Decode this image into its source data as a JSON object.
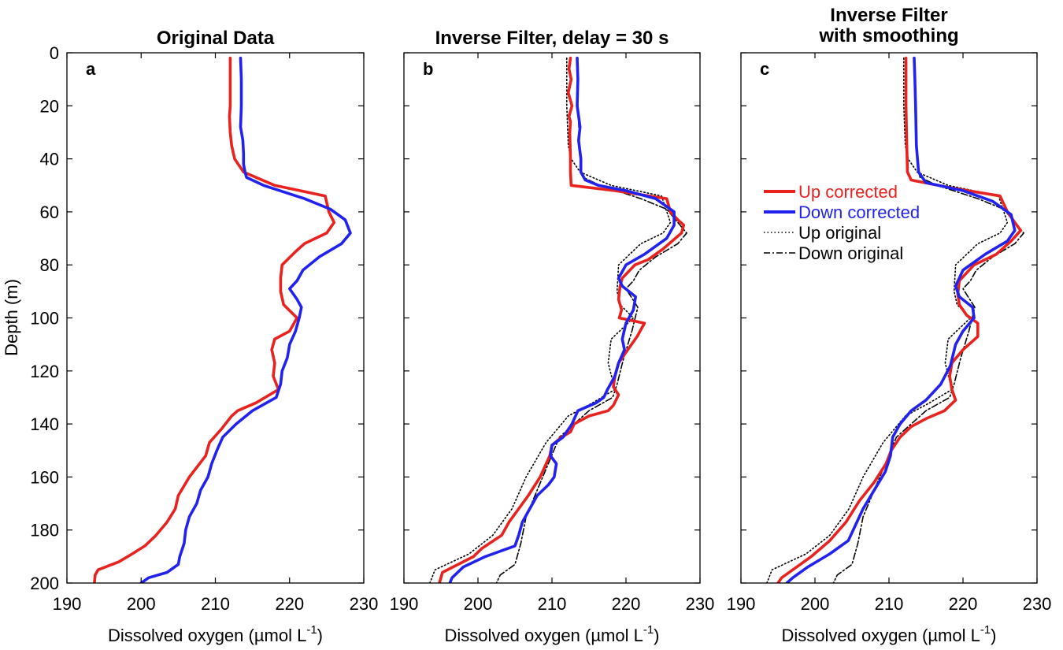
{
  "ylabel": "Depth (m)",
  "xlabel_base": "Dissolved oxygen (µmol L",
  "xlabel_sup": "-1",
  "xlabel_end": ")",
  "legend": {
    "up_corrected": "Up corrected",
    "down_corrected": "Down corrected",
    "up_original": "Up original",
    "down_original": "Down original"
  },
  "colors": {
    "red": "#e8231f",
    "blue": "#2222ee",
    "black": "#000000"
  },
  "chart_data": [
    {
      "type": "line",
      "panel_letter": "a",
      "title_lines": [
        "Original Data"
      ],
      "xlabel": "Dissolved oxygen (µmol L-1)",
      "ylabel": "Depth (m)",
      "xlim": [
        190,
        230
      ],
      "ylim": [
        200,
        0
      ],
      "xticks": [
        190,
        200,
        210,
        220,
        230
      ],
      "yticks": [
        0,
        20,
        40,
        60,
        80,
        100,
        120,
        140,
        160,
        180,
        200
      ],
      "yticks_shown": true,
      "legend": false,
      "series": [
        {
          "key": "up",
          "style": "red-solid",
          "x": [
            212.0,
            212.0,
            212.0,
            211.9,
            212.0,
            212.2,
            212.6,
            213.8,
            218.0,
            224.8,
            225.3,
            226.0,
            225.0,
            222.0,
            220.8,
            219.0,
            218.8,
            218.8,
            219.2,
            221.0,
            220.0,
            218.0,
            217.6,
            218.0,
            217.8,
            218.5,
            215.5,
            213.0,
            212.2,
            210.8,
            209.2,
            208.7,
            206.5,
            205.0,
            204.6,
            203.5,
            202.0,
            200.5,
            198.8,
            197.0,
            194.2,
            193.8,
            193.7
          ],
          "y": [
            2,
            10,
            20,
            24,
            30,
            35,
            40,
            45,
            50,
            54,
            60,
            64,
            68,
            72,
            75,
            80,
            85,
            90,
            95,
            100,
            105,
            108,
            112,
            117,
            122,
            127,
            132,
            135,
            137,
            142,
            147,
            152,
            160,
            167,
            172,
            177,
            182,
            186,
            189,
            192,
            195,
            197,
            200
          ]
        },
        {
          "key": "down",
          "style": "blue-solid",
          "x": [
            213.4,
            213.5,
            213.5,
            213.4,
            213.7,
            213.8,
            213.8,
            214.0,
            214.2,
            216.5,
            222.0,
            225.5,
            227.5,
            228.2,
            227.0,
            224.0,
            221.8,
            221.0,
            220.0,
            221.0,
            221.6,
            221.3,
            220.8,
            220.0,
            219.7,
            219.0,
            218.8,
            218.2,
            215.0,
            212.8,
            211.0,
            210.2,
            209.5,
            209.0,
            208.0,
            207.5,
            206.5,
            206.0,
            205.8,
            205.2,
            205.0,
            203.5,
            201.0,
            200.0
          ],
          "y": [
            2,
            10,
            20,
            28,
            33,
            38,
            42,
            45,
            47,
            50,
            55,
            59,
            63,
            68,
            72,
            77,
            82,
            86,
            89,
            93,
            96,
            100,
            105,
            110,
            115,
            120,
            125,
            130,
            135,
            140,
            145,
            150,
            155,
            160,
            165,
            170,
            175,
            180,
            185,
            190,
            193,
            196,
            198,
            200
          ]
        }
      ]
    },
    {
      "type": "line",
      "panel_letter": "b",
      "title_lines": [
        "Inverse Filter, delay = 30 s"
      ],
      "xlabel": "Dissolved oxygen (µmol L-1)",
      "xlim": [
        190,
        230
      ],
      "ylim": [
        200,
        0
      ],
      "xticks": [
        190,
        200,
        210,
        220,
        230
      ],
      "yticks": [
        0,
        20,
        40,
        60,
        80,
        100,
        120,
        140,
        160,
        180,
        200
      ],
      "yticks_shown": false,
      "legend": false,
      "series": [
        {
          "key": "up_original",
          "style": "black-dotted",
          "x": [
            212.0,
            212.0,
            212.0,
            212.2,
            212.6,
            213.8,
            218.0,
            224.8,
            226.0,
            225.0,
            222.0,
            219.0,
            218.8,
            219.2,
            221.0,
            218.0,
            217.6,
            218.5,
            215.5,
            212.2,
            209.2,
            206.5,
            204.6,
            202.0,
            198.8,
            194.2,
            193.5
          ],
          "y": [
            2,
            10,
            20,
            35,
            40,
            45,
            50,
            54,
            64,
            68,
            72,
            80,
            90,
            95,
            100,
            108,
            117,
            127,
            132,
            137,
            147,
            160,
            172,
            182,
            189,
            195,
            200
          ]
        },
        {
          "key": "down_original",
          "style": "black-dashdot",
          "x": [
            213.4,
            213.5,
            213.5,
            213.8,
            214.0,
            214.2,
            216.5,
            222.0,
            225.5,
            228.2,
            227.0,
            224.0,
            221.8,
            221.0,
            220.0,
            221.6,
            220.8,
            219.7,
            218.8,
            218.2,
            215.0,
            211.0,
            209.5,
            208.0,
            206.5,
            205.8,
            205.0,
            203.0,
            202.5
          ],
          "y": [
            2,
            10,
            20,
            38,
            45,
            47,
            50,
            55,
            59,
            68,
            72,
            77,
            82,
            86,
            89,
            96,
            105,
            115,
            125,
            130,
            135,
            145,
            155,
            165,
            175,
            185,
            193,
            197,
            200
          ]
        },
        {
          "key": "up",
          "style": "red-solid",
          "x": [
            212.5,
            212.3,
            212.6,
            212.2,
            212.7,
            212.3,
            212.5,
            212.4,
            212.5,
            212.5,
            212.6,
            218.5,
            225.5,
            226.0,
            227.0,
            227.8,
            227.5,
            225.0,
            223.0,
            221.2,
            219.5,
            219.2,
            219.0,
            219.4,
            219.1,
            222.5,
            221.5,
            220.5,
            219.0,
            218.5,
            218.3,
            219.0,
            218.3,
            217.6,
            215.0,
            213.0,
            212.5,
            211.3,
            210.0,
            209.7,
            208.4,
            206.8,
            205.5,
            204.2,
            203.2,
            200.5,
            199.4,
            195.2,
            194.8
          ],
          "y": [
            2,
            6,
            10,
            15,
            20,
            24,
            26,
            30,
            40,
            45,
            50,
            52,
            55,
            60,
            63,
            65,
            68,
            74,
            78,
            80,
            85,
            88,
            93,
            97,
            100,
            102,
            107,
            111,
            117,
            122,
            126,
            129,
            133,
            135,
            137,
            140,
            143,
            145,
            148,
            152,
            160,
            167,
            172,
            177,
            182,
            187,
            190,
            196,
            200
          ]
        },
        {
          "key": "down",
          "style": "blue-solid",
          "x": [
            213.4,
            213.5,
            213.4,
            213.8,
            213.6,
            213.9,
            213.9,
            214.5,
            216.3,
            220.0,
            224.0,
            226.5,
            226.5,
            225.5,
            222.5,
            220.0,
            219.0,
            219.5,
            221.3,
            221.0,
            220.0,
            219.5,
            219.8,
            219.0,
            218.5,
            217.5,
            217.0,
            216.0,
            213.5,
            212.7,
            211.5,
            210.0,
            209.8,
            210.6,
            210.3,
            209.5,
            208.0,
            207.0,
            206.0,
            205.5,
            205.0,
            201.0,
            198.0,
            196.5,
            196.2
          ],
          "y": [
            2,
            10,
            20,
            28,
            33,
            40,
            45,
            48,
            50,
            52,
            55,
            60,
            65,
            70,
            76,
            80,
            85,
            88,
            92,
            97,
            102,
            108,
            112,
            117,
            122,
            127,
            130,
            132,
            135,
            140,
            145,
            148,
            152,
            155,
            160,
            163,
            167,
            172,
            177,
            182,
            186,
            190,
            194,
            198,
            200
          ]
        }
      ]
    },
    {
      "type": "line",
      "panel_letter": "c",
      "title_lines": [
        "Inverse Filter",
        "with smoothing"
      ],
      "xlabel": "Dissolved oxygen (µmol L-1)",
      "xlim": [
        190,
        230
      ],
      "ylim": [
        200,
        0
      ],
      "xticks": [
        190,
        200,
        210,
        220,
        230
      ],
      "yticks": [
        0,
        20,
        40,
        60,
        80,
        100,
        120,
        140,
        160,
        180,
        200
      ],
      "yticks_shown": false,
      "legend": true,
      "legend_position": "upper-right",
      "series": [
        {
          "key": "up_original",
          "style": "black-dotted",
          "x": [
            212.0,
            212.0,
            212.0,
            212.2,
            212.6,
            213.8,
            218.0,
            224.8,
            226.0,
            225.0,
            222.0,
            219.0,
            218.8,
            219.2,
            221.0,
            218.0,
            217.6,
            218.5,
            215.5,
            212.2,
            209.2,
            206.5,
            204.6,
            202.0,
            198.8,
            194.2,
            193.5
          ],
          "y": [
            2,
            10,
            20,
            35,
            40,
            45,
            50,
            54,
            64,
            68,
            72,
            80,
            90,
            95,
            100,
            108,
            117,
            127,
            132,
            137,
            147,
            160,
            172,
            182,
            189,
            195,
            200
          ]
        },
        {
          "key": "down_original",
          "style": "black-dashdot",
          "x": [
            213.4,
            213.5,
            213.5,
            213.8,
            214.0,
            214.2,
            216.5,
            222.0,
            225.5,
            228.2,
            227.0,
            224.0,
            221.8,
            221.0,
            220.0,
            221.6,
            220.8,
            219.7,
            218.8,
            218.2,
            215.0,
            211.0,
            209.5,
            208.0,
            206.5,
            205.8,
            205.0,
            203.0,
            202.5
          ],
          "y": [
            2,
            10,
            20,
            38,
            45,
            47,
            50,
            55,
            59,
            68,
            72,
            77,
            82,
            86,
            89,
            96,
            105,
            115,
            125,
            130,
            135,
            145,
            155,
            165,
            175,
            185,
            193,
            197,
            200
          ]
        },
        {
          "key": "up",
          "style": "red-solid",
          "x": [
            212.3,
            212.3,
            212.3,
            212.4,
            212.5,
            213.0,
            218.5,
            225.0,
            226.0,
            227.0,
            227.8,
            226.5,
            224.5,
            221.5,
            219.5,
            219.3,
            219.5,
            220.5,
            222.0,
            222.0,
            220.0,
            218.5,
            218.2,
            218.5,
            219.0,
            217.5,
            215.0,
            213.0,
            211.5,
            210.3,
            209.6,
            208.0,
            206.0,
            204.2,
            202.0,
            199.5,
            197.0,
            195.5,
            195.0
          ],
          "y": [
            2,
            10,
            20,
            35,
            45,
            48,
            51,
            54,
            60,
            64,
            67,
            71,
            76,
            80,
            86,
            91,
            95,
            99,
            102,
            107,
            112,
            117,
            122,
            127,
            131,
            135,
            138,
            141,
            145,
            150,
            155,
            162,
            169,
            177,
            184,
            190,
            195,
            198,
            200
          ]
        },
        {
          "key": "down",
          "style": "blue-solid",
          "x": [
            213.4,
            213.5,
            213.6,
            213.7,
            214.0,
            215.0,
            220.0,
            224.0,
            226.5,
            227.0,
            226.0,
            223.0,
            220.0,
            219.0,
            219.5,
            221.3,
            221.5,
            220.0,
            219.0,
            218.3,
            217.0,
            215.0,
            213.0,
            211.5,
            210.5,
            210.2,
            209.5,
            208.0,
            206.5,
            205.5,
            204.5,
            202.0,
            199.0,
            197.0,
            196.2
          ],
          "y": [
            2,
            10,
            20,
            35,
            45,
            49,
            52,
            56,
            61,
            67,
            71,
            76,
            82,
            88,
            92,
            96,
            100,
            105,
            110,
            118,
            125,
            131,
            135,
            140,
            145,
            152,
            158,
            165,
            172,
            178,
            184,
            189,
            194,
            198,
            200
          ]
        }
      ]
    }
  ]
}
